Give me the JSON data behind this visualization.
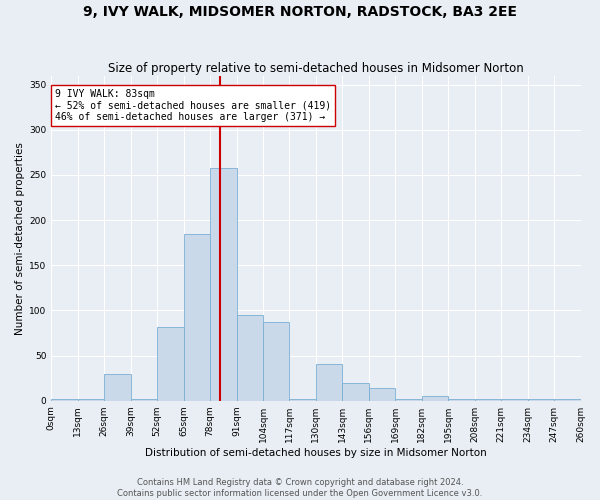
{
  "title": "9, IVY WALK, MIDSOMER NORTON, RADSTOCK, BA3 2EE",
  "subtitle": "Size of property relative to semi-detached houses in Midsomer Norton",
  "xlabel": "Distribution of semi-detached houses by size in Midsomer Norton",
  "ylabel": "Number of semi-detached properties",
  "footer_line1": "Contains HM Land Registry data © Crown copyright and database right 2024.",
  "footer_line2": "Contains public sector information licensed under the Open Government Licence v3.0.",
  "bin_edges": [
    0,
    13,
    26,
    39,
    52,
    65,
    78,
    91,
    104,
    117,
    130,
    143,
    156,
    169,
    182,
    195,
    208,
    221,
    234,
    247,
    260
  ],
  "bin_labels": [
    "0sqm",
    "13sqm",
    "26sqm",
    "39sqm",
    "52sqm",
    "65sqm",
    "78sqm",
    "91sqm",
    "104sqm",
    "117sqm",
    "130sqm",
    "143sqm",
    "156sqm",
    "169sqm",
    "182sqm",
    "195sqm",
    "208sqm",
    "221sqm",
    "234sqm",
    "247sqm",
    "260sqm"
  ],
  "bar_heights": [
    2,
    2,
    30,
    2,
    82,
    185,
    258,
    95,
    87,
    2,
    41,
    20,
    14,
    2,
    5,
    2,
    2,
    2,
    2,
    2
  ],
  "bar_color": "#c9d9e9",
  "bar_edge_color": "#7bafd4",
  "property_value": 83,
  "vline_color": "#cc0000",
  "annotation_box_text": "9 IVY WALK: 83sqm\n← 52% of semi-detached houses are smaller (419)\n46% of semi-detached houses are larger (371) →",
  "annotation_box_edge_color": "#cc0000",
  "ylim": [
    0,
    360
  ],
  "yticks": [
    0,
    50,
    100,
    150,
    200,
    250,
    300,
    350
  ],
  "background_color": "#e8eef4",
  "plot_bg_color": "#e8eef4",
  "grid_color": "#ffffff",
  "title_fontsize": 10,
  "subtitle_fontsize": 8.5,
  "axis_label_fontsize": 7.5,
  "tick_fontsize": 6.5,
  "footer_fontsize": 6
}
